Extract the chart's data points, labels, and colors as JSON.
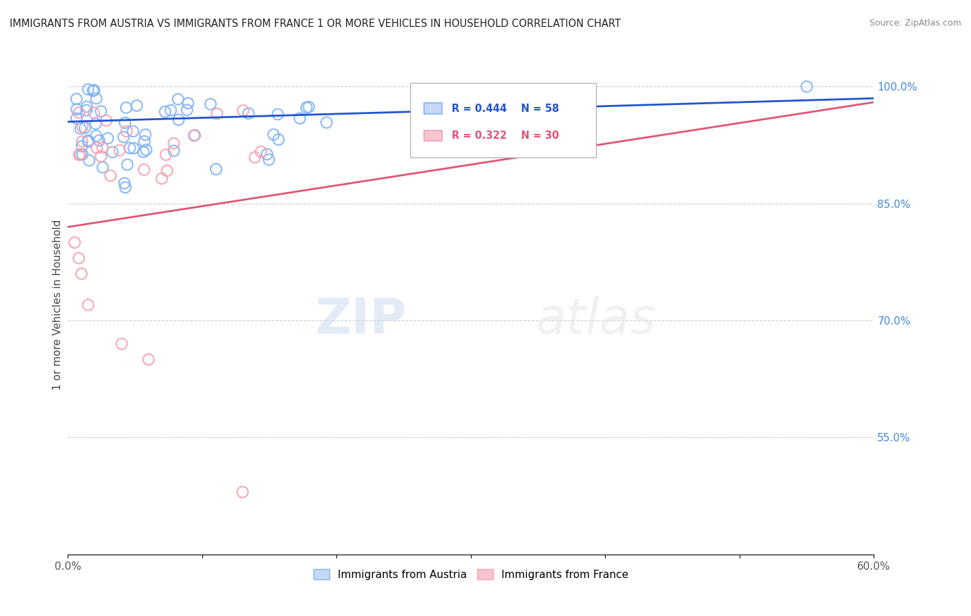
{
  "title": "IMMIGRANTS FROM AUSTRIA VS IMMIGRANTS FROM FRANCE 1 OR MORE VEHICLES IN HOUSEHOLD CORRELATION CHART",
  "source": "Source: ZipAtlas.com",
  "ylabel": "1 or more Vehicles in Household",
  "xlim": [
    0.0,
    0.6
  ],
  "ylim": [
    0.4,
    1.04
  ],
  "yticks": [
    0.55,
    0.7,
    0.85,
    1.0
  ],
  "yticklabels": [
    "55.0%",
    "70.0%",
    "85.0%",
    "100.0%"
  ],
  "austria_color": "#7fb3f5",
  "austria_line_color": "#2255cc",
  "france_color": "#f5a0b0",
  "france_line_color": "#e05575",
  "austria_R": 0.444,
  "austria_N": 58,
  "france_R": 0.322,
  "france_N": 30,
  "watermark_zip": "ZIP",
  "watermark_atlas": "atlas",
  "grid_color": "#cccccc",
  "background_color": "#ffffff",
  "legend_austria_fill": "#c5d8f8",
  "legend_france_fill": "#f8c5cf"
}
